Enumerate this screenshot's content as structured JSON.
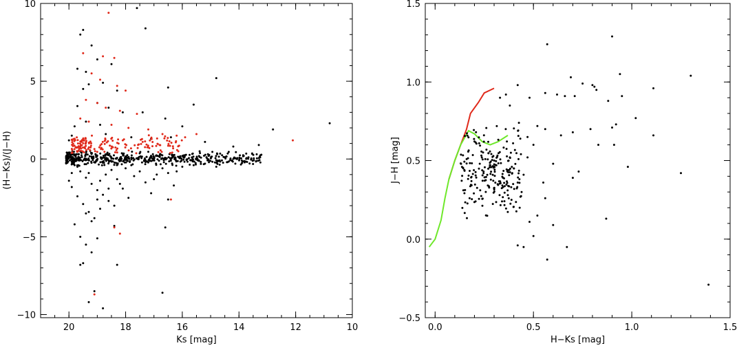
{
  "chart_data": [
    {
      "type": "scatter",
      "xlabel": "Ks [mag]",
      "ylabel": "(H−Ks)/(J−H)",
      "xlim": [
        21,
        10
      ],
      "ylim": [
        -10.2,
        10
      ],
      "xticks": [
        {
          "v": 20,
          "label": "20"
        },
        {
          "v": 18,
          "label": "18"
        },
        {
          "v": 16,
          "label": "16"
        },
        {
          "v": 14,
          "label": "14"
        },
        {
          "v": 12,
          "label": "12"
        },
        {
          "v": 10,
          "label": "10"
        }
      ],
      "yticks": [
        {
          "v": -10,
          "label": "−10"
        },
        {
          "v": -5,
          "label": "−5"
        },
        {
          "v": 0,
          "label": "0"
        },
        {
          "v": 5,
          "label": "5"
        },
        {
          "v": 10,
          "label": "10"
        }
      ],
      "minor_x": 0.5,
      "minor_y": 1,
      "series": [
        {
          "color": "#000000",
          "points": [
            [
              19.6,
              8.0
            ],
            [
              19.5,
              8.3
            ],
            [
              19.2,
              7.3
            ],
            [
              19.7,
              5.8
            ],
            [
              19.4,
              5.6
            ],
            [
              19.0,
              6.4
            ],
            [
              17.6,
              9.7
            ],
            [
              17.3,
              8.4
            ],
            [
              19.5,
              4.5
            ],
            [
              19.3,
              4.8
            ],
            [
              18.8,
              4.9
            ],
            [
              18.3,
              4.4
            ],
            [
              18.5,
              6.1
            ],
            [
              16.5,
              4.6
            ],
            [
              14.8,
              5.2
            ],
            [
              15.6,
              3.5
            ],
            [
              19.7,
              3.4
            ],
            [
              19.0,
              3.6
            ],
            [
              18.6,
              3.3
            ],
            [
              18.1,
              3.0
            ],
            [
              17.4,
              3.0
            ],
            [
              16.6,
              2.6
            ],
            [
              16.0,
              2.1
            ],
            [
              12.8,
              1.9
            ],
            [
              10.8,
              2.3
            ],
            [
              19.8,
              2.1
            ],
            [
              19.4,
              2.4
            ],
            [
              18.9,
              2.2
            ],
            [
              20.0,
              1.2
            ],
            [
              19.9,
              1.5
            ],
            [
              17.1,
              1.3
            ],
            [
              16.4,
              1.4
            ],
            [
              15.2,
              1.1
            ],
            [
              14.2,
              0.8
            ],
            [
              13.3,
              0.9
            ],
            [
              17.8,
              1.4
            ],
            [
              18.7,
              1.6
            ],
            [
              19.8,
              -0.4
            ],
            [
              19.6,
              -0.8
            ],
            [
              19.4,
              -1.2
            ],
            [
              19.2,
              -1.6
            ],
            [
              19.0,
              -2.0
            ],
            [
              18.8,
              -2.3
            ],
            [
              18.6,
              -2.7
            ],
            [
              18.4,
              -3.0
            ],
            [
              19.9,
              -1.8
            ],
            [
              19.7,
              -2.4
            ],
            [
              19.5,
              -2.9
            ],
            [
              19.3,
              -3.4
            ],
            [
              19.1,
              -3.8
            ],
            [
              18.9,
              -1.4
            ],
            [
              18.7,
              -1.0
            ],
            [
              18.5,
              -0.7
            ],
            [
              18.3,
              -1.3
            ],
            [
              18.1,
              -1.9
            ],
            [
              17.9,
              -2.5
            ],
            [
              17.7,
              -1.1
            ],
            [
              17.5,
              -0.8
            ],
            [
              17.3,
              -1.5
            ],
            [
              17.1,
              -2.2
            ],
            [
              16.9,
              -1.0
            ],
            [
              16.7,
              -0.6
            ],
            [
              16.5,
              -0.9
            ],
            [
              16.3,
              -1.7
            ],
            [
              19.8,
              -4.2
            ],
            [
              19.6,
              -5.0
            ],
            [
              19.4,
              -5.5
            ],
            [
              19.2,
              -6.0
            ],
            [
              19.0,
              -5.1
            ],
            [
              19.6,
              -6.8
            ],
            [
              19.5,
              -6.7
            ],
            [
              19.1,
              -8.5
            ],
            [
              18.8,
              -9.6
            ],
            [
              19.3,
              -9.2
            ],
            [
              18.3,
              -6.8
            ],
            [
              16.6,
              -4.4
            ],
            [
              16.7,
              -8.6
            ],
            [
              16.5,
              -2.6
            ],
            [
              18.9,
              -3.2
            ],
            [
              19.2,
              -4.0
            ],
            [
              18.4,
              -4.3
            ],
            [
              19.9,
              -0.9
            ],
            [
              20.0,
              -1.4
            ],
            [
              19.7,
              -0.5
            ],
            [
              19.3,
              -0.9
            ],
            [
              18.0,
              -0.6
            ],
            [
              17.8,
              -0.4
            ],
            [
              16.0,
              -0.5
            ],
            [
              15.6,
              -0.4
            ],
            [
              15.2,
              -0.3
            ],
            [
              14.8,
              -0.5
            ],
            [
              14.4,
              -0.2
            ],
            [
              13.9,
              -0.1
            ],
            [
              19.0,
              -2.6
            ],
            [
              18.2,
              -1.6
            ],
            [
              17.0,
              -1.3
            ],
            [
              16.2,
              -0.8
            ],
            [
              19.4,
              -3.5
            ],
            [
              18.6,
              -1.9
            ]
          ],
          "band": {
            "x": [
              20.1,
              13.2
            ],
            "y": [
              -0.45,
              0.55
            ],
            "n": 520,
            "seed": 7
          }
        },
        {
          "color": "#e0291a",
          "points": [
            [
              18.6,
              9.4
            ],
            [
              19.5,
              6.8
            ],
            [
              18.8,
              6.6
            ],
            [
              18.4,
              6.5
            ],
            [
              19.2,
              5.5
            ],
            [
              18.9,
              5.1
            ],
            [
              18.3,
              4.7
            ],
            [
              18.0,
              4.4
            ],
            [
              19.4,
              3.8
            ],
            [
              19.0,
              3.6
            ],
            [
              18.7,
              3.3
            ],
            [
              18.2,
              3.1
            ],
            [
              17.6,
              2.9
            ],
            [
              19.6,
              2.6
            ],
            [
              19.3,
              2.4
            ],
            [
              18.5,
              2.2
            ],
            [
              17.9,
              2.0
            ],
            [
              17.2,
              1.9
            ],
            [
              16.7,
              1.6
            ],
            [
              16.2,
              1.5
            ],
            [
              15.9,
              1.4
            ],
            [
              15.5,
              1.6
            ],
            [
              12.1,
              1.2
            ],
            [
              16.4,
              -2.6
            ],
            [
              18.4,
              -4.4
            ],
            [
              18.2,
              -4.8
            ],
            [
              19.1,
              -8.7
            ],
            [
              19.8,
              1.3
            ],
            [
              18.1,
              1.2
            ],
            [
              17.4,
              1.1
            ],
            [
              16.8,
              0.9
            ]
          ],
          "band": {
            "x": [
              19.9,
              16.0
            ],
            "y": [
              0.25,
              1.55
            ],
            "n": 160,
            "seed": 13
          }
        }
      ]
    },
    {
      "type": "scatter",
      "xlabel": "H−Ks [mag]",
      "ylabel": "J−H [mag]",
      "xlim": [
        -0.05,
        1.5
      ],
      "ylim": [
        -0.5,
        1.5
      ],
      "xticks": [
        {
          "v": 0,
          "label": "0.0"
        },
        {
          "v": 0.5,
          "label": "0.5"
        },
        {
          "v": 1,
          "label": "1.0"
        },
        {
          "v": 1.5,
          "label": "1.5"
        }
      ],
      "yticks": [
        {
          "v": -0.5,
          "label": "−0.5"
        },
        {
          "v": 0,
          "label": "0.0"
        },
        {
          "v": 0.5,
          "label": "0.5"
        },
        {
          "v": 1,
          "label": "1.0"
        },
        {
          "v": 1.5,
          "label": "1.5"
        }
      ],
      "minor_x": 0.1,
      "minor_y": 0.1,
      "series": [
        {
          "color": "#000000",
          "points": [
            [
              0.9,
              1.29
            ],
            [
              0.57,
              1.24
            ],
            [
              0.69,
              1.03
            ],
            [
              0.94,
              1.05
            ],
            [
              1.3,
              1.04
            ],
            [
              0.8,
              0.98
            ],
            [
              0.81,
              0.97
            ],
            [
              0.82,
              0.95
            ],
            [
              0.75,
              0.99
            ],
            [
              0.95,
              0.91
            ],
            [
              1.11,
              0.96
            ],
            [
              0.62,
              0.92
            ],
            [
              0.66,
              0.91
            ],
            [
              0.71,
              0.91
            ],
            [
              0.48,
              0.9
            ],
            [
              0.88,
              0.88
            ],
            [
              0.56,
              0.93
            ],
            [
              0.42,
              0.98
            ],
            [
              0.36,
              0.92
            ],
            [
              0.38,
              0.85
            ],
            [
              0.9,
              0.71
            ],
            [
              1.02,
              0.77
            ],
            [
              0.79,
              0.7
            ],
            [
              1.11,
              0.66
            ],
            [
              0.92,
              0.73
            ],
            [
              0.83,
              0.6
            ],
            [
              0.91,
              0.6
            ],
            [
              0.7,
              0.68
            ],
            [
              0.64,
              0.66
            ],
            [
              0.56,
              0.7
            ],
            [
              0.52,
              0.72
            ],
            [
              0.47,
              0.65
            ],
            [
              0.47,
              0.52
            ],
            [
              0.5,
              0.6
            ],
            [
              0.6,
              0.48
            ],
            [
              0.73,
              0.43
            ],
            [
              0.98,
              0.46
            ],
            [
              0.7,
              0.39
            ],
            [
              1.25,
              0.42
            ],
            [
              0.55,
              0.36
            ],
            [
              0.56,
              0.26
            ],
            [
              0.6,
              0.09
            ],
            [
              0.87,
              0.13
            ],
            [
              0.67,
              -0.05
            ],
            [
              0.57,
              -0.13
            ],
            [
              0.42,
              -0.04
            ],
            [
              0.45,
              -0.05
            ],
            [
              0.5,
              0.02
            ],
            [
              1.39,
              -0.29
            ],
            [
              0.43,
              0.2
            ],
            [
              0.48,
              0.11
            ],
            [
              0.52,
              0.15
            ],
            [
              0.42,
              0.36
            ],
            [
              0.38,
              0.52
            ],
            [
              0.4,
              0.45
            ],
            [
              0.44,
              0.3
            ],
            [
              0.33,
              0.9
            ],
            [
              0.39,
              0.46
            ],
            [
              0.45,
              0.41
            ],
            [
              0.37,
              0.28
            ],
            [
              0.34,
              0.24
            ]
          ],
          "band": {
            "x": [
              0.13,
              0.44
            ],
            "y": [
              0.12,
              0.75
            ],
            "n": 230,
            "seed": 21
          }
        }
      ],
      "lines": [
        {
          "color": "#e0291a",
          "points": [
            [
              0.07,
              0.38
            ],
            [
              0.1,
              0.5
            ],
            [
              0.13,
              0.6
            ],
            [
              0.16,
              0.7
            ],
            [
              0.18,
              0.8
            ],
            [
              0.22,
              0.87
            ],
            [
              0.25,
              0.93
            ],
            [
              0.3,
              0.96
            ]
          ]
        },
        {
          "color": "#6ee82a",
          "points": [
            [
              -0.03,
              -0.05
            ],
            [
              0.0,
              0.0
            ],
            [
              0.03,
              0.12
            ],
            [
              0.05,
              0.26
            ],
            [
              0.07,
              0.38
            ],
            [
              0.1,
              0.5
            ],
            [
              0.13,
              0.6
            ],
            [
              0.17,
              0.69
            ],
            [
              0.2,
              0.67
            ],
            [
              0.24,
              0.62
            ],
            [
              0.28,
              0.6
            ],
            [
              0.32,
              0.62
            ],
            [
              0.37,
              0.66
            ]
          ]
        }
      ]
    }
  ]
}
